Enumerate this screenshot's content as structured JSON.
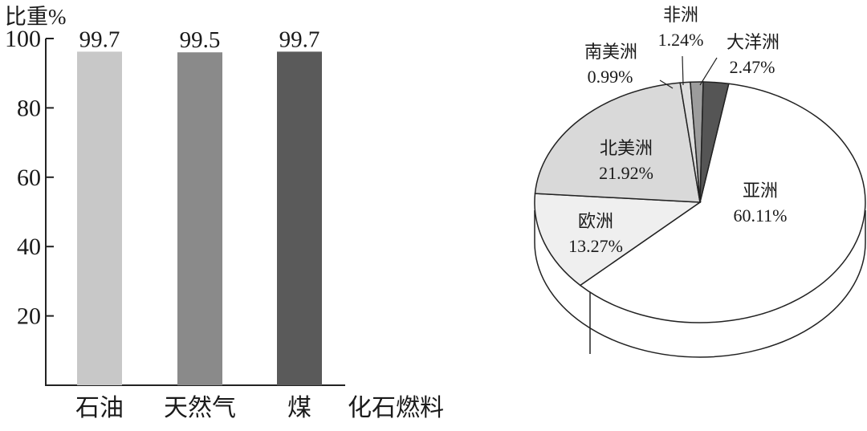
{
  "chart_data": [
    {
      "type": "bar",
      "ylabel": "比重%",
      "xlabel": "化石燃料",
      "categories": [
        "石油",
        "天然气",
        "煤"
      ],
      "values": [
        99.7,
        99.5,
        99.7
      ],
      "value_labels": [
        "99.7",
        "99.5",
        "99.7"
      ],
      "yticks": [
        20,
        40,
        60,
        80,
        100
      ],
      "ylim": [
        0,
        100
      ],
      "colors": [
        "#c8c8c8",
        "#8a8a8a",
        "#5a5a5a"
      ]
    },
    {
      "type": "pie",
      "categories": [
        "亚洲",
        "欧洲",
        "北美洲",
        "南美洲",
        "非洲",
        "大洋洲"
      ],
      "values": [
        60.11,
        13.27,
        21.92,
        0.99,
        1.24,
        2.47
      ],
      "value_labels": [
        "60.11%",
        "13.27%",
        "21.92%",
        "0.99%",
        "1.24%",
        "2.47%"
      ],
      "colors": [
        "#ffffff",
        "#efefef",
        "#d9d9d9",
        "#dddddd",
        "#9c9c9c",
        "#555555"
      ]
    }
  ]
}
